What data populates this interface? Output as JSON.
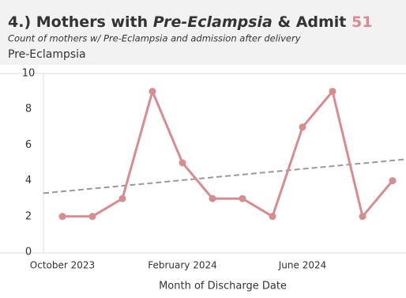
{
  "chart_data": {
    "type": "line",
    "title_parts": [
      "4.) Mothers with ",
      "Pre-Eclampsia",
      " & Admit "
    ],
    "admit_count": 51,
    "subtitle": "Count of mothers w/ Pre-Eclampsia and admission after delivery",
    "x_label": "Month of Discharge Date",
    "categories": [
      "October 2023",
      null,
      null,
      null,
      "February 2024",
      null,
      null,
      null,
      "June 2024",
      null,
      null,
      null
    ],
    "series": [
      {
        "name": "Pre-Eclampsia",
        "color": "#d98c8f",
        "values": [
          2,
          2,
          3,
          9,
          5,
          3,
          3,
          2,
          7,
          9,
          2,
          4
        ]
      }
    ],
    "trendline": [
      3.3,
      5.2
    ],
    "trend_color": "#999999",
    "ylim": [
      0,
      10
    ],
    "yticks": [
      0,
      2,
      4,
      6,
      8,
      10
    ]
  }
}
